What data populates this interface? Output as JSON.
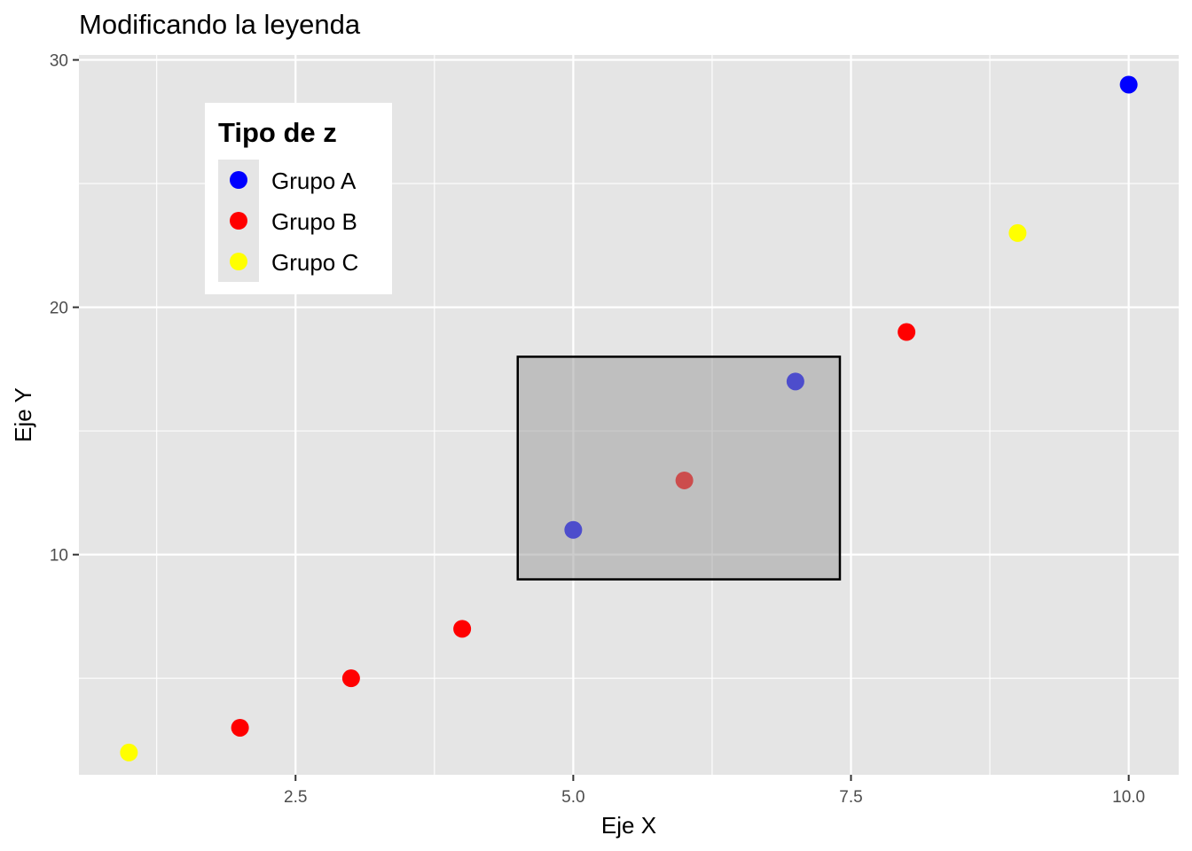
{
  "chart_data": {
    "type": "scatter",
    "title": "Modificando la leyenda",
    "xlabel": "Eje X",
    "ylabel": "Eje Y",
    "xlim": [
      0.55,
      10.45
    ],
    "ylim": [
      1.1,
      30.2
    ],
    "x_ticks": [
      2.5,
      5.0,
      7.5,
      10.0
    ],
    "x_tick_labels": [
      "2.5",
      "5.0",
      "7.5",
      "10.0"
    ],
    "y_ticks": [
      10,
      20,
      30
    ],
    "y_tick_labels": [
      "10",
      "20",
      "30"
    ],
    "x_minor_ticks": [
      1.25,
      3.75,
      6.25,
      8.75
    ],
    "y_minor_ticks": [
      5,
      15,
      25
    ],
    "grid": true,
    "panel_background": "#e5e5e5",
    "legend": {
      "title": "Tipo de z",
      "placement": "top-left inside",
      "entries": [
        {
          "label": "Grupo A",
          "color": "#0000ff"
        },
        {
          "label": "Grupo B",
          "color": "#ff0000"
        },
        {
          "label": "Grupo C",
          "color": "#ffff00"
        }
      ]
    },
    "series": [
      {
        "label": "Grupo A",
        "color": "#0000ff",
        "points": [
          [
            5,
            11
          ],
          [
            7,
            17
          ],
          [
            10,
            29
          ]
        ]
      },
      {
        "label": "Grupo B",
        "color": "#ff0000",
        "points": [
          [
            2,
            3
          ],
          [
            3,
            5
          ],
          [
            4,
            7
          ],
          [
            6,
            13
          ],
          [
            8,
            19
          ]
        ]
      },
      {
        "label": "Grupo C",
        "color": "#ffff00",
        "points": [
          [
            1,
            2
          ],
          [
            9,
            23
          ]
        ]
      }
    ],
    "annotation_rect": {
      "xmin": 4.5,
      "xmax": 7.4,
      "ymin": 9,
      "ymax": 18,
      "fill": "#999999",
      "fill_opacity": 0.5,
      "stroke": "#000000"
    }
  }
}
